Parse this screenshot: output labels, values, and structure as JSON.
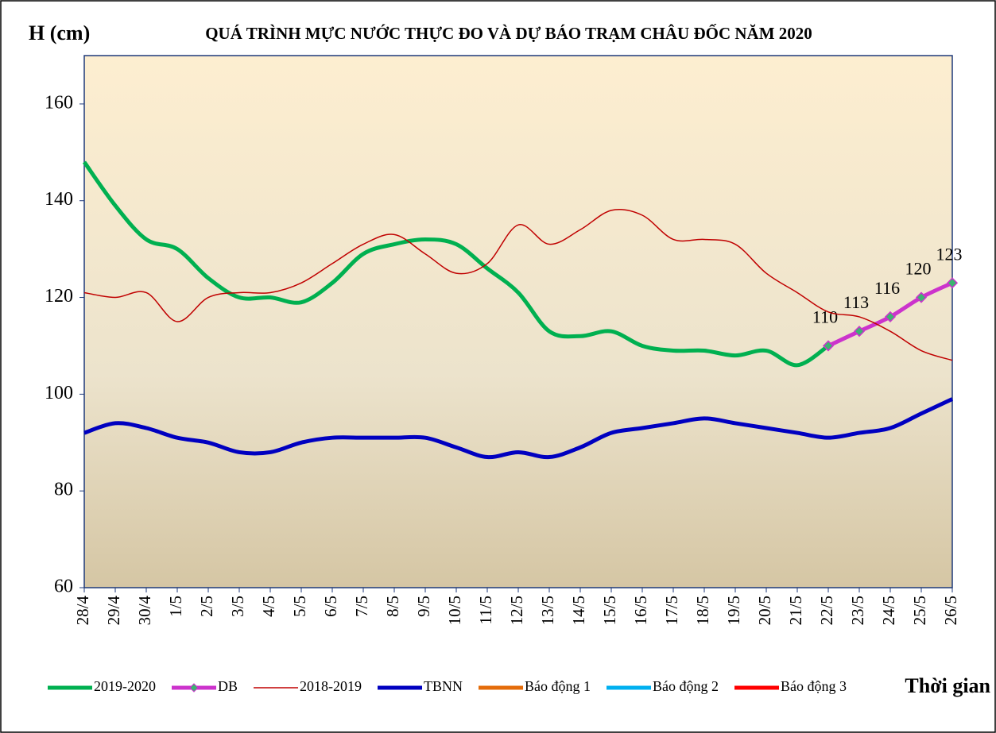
{
  "chart_data": {
    "type": "line",
    "title": "QUÁ TRÌNH MỰC NƯỚC THỰC ĐO VÀ DỰ BÁO TRẠM CHÂU ĐỐC NĂM  2020",
    "y_label": "H (cm)",
    "x_label": "Thời gian",
    "categories": [
      "28/4",
      "29/4",
      "30/4",
      "1/5",
      "2/5",
      "3/5",
      "4/5",
      "5/5",
      "6/5",
      "7/5",
      "8/5",
      "9/5",
      "10/5",
      "11/5",
      "12/5",
      "13/5",
      "14/5",
      "15/5",
      "16/5",
      "17/5",
      "18/5",
      "19/5",
      "20/5",
      "21/5",
      "22/5",
      "23/5",
      "24/5",
      "25/5",
      "26/5"
    ],
    "series": [
      {
        "name": "2019-2020",
        "color": "#00b050",
        "width": 5,
        "values": [
          148,
          139,
          132,
          130,
          124,
          120,
          120,
          119,
          123,
          129,
          131,
          132,
          131,
          126,
          121,
          113,
          112,
          113,
          110,
          109,
          109,
          108,
          109,
          106,
          110,
          null,
          null,
          null,
          null
        ]
      },
      {
        "name": "DB",
        "color": "#cc33cc",
        "width": 5,
        "markers": true,
        "data_labels": true,
        "values": [
          null,
          null,
          null,
          null,
          null,
          null,
          null,
          null,
          null,
          null,
          null,
          null,
          null,
          null,
          null,
          null,
          null,
          null,
          null,
          null,
          null,
          null,
          null,
          null,
          110,
          113,
          116,
          120,
          123
        ]
      },
      {
        "name": "2018-2019",
        "color": "#c00000",
        "width": 1.5,
        "values": [
          121,
          120,
          121,
          115,
          120,
          121,
          121,
          123,
          127,
          131,
          133,
          129,
          125,
          127,
          135,
          131,
          134,
          138,
          137,
          132,
          132,
          131,
          125,
          121,
          117,
          116,
          113,
          109,
          107
        ]
      },
      {
        "name": "TBNN",
        "color": "#0000c0",
        "width": 5,
        "values": [
          92,
          94,
          93,
          91,
          90,
          88,
          88,
          90,
          91,
          91,
          91,
          91,
          89,
          87,
          88,
          87,
          89,
          92,
          93,
          94,
          95,
          94,
          93,
          92,
          91,
          92,
          93,
          96,
          99
        ]
      },
      {
        "name": "Báo động 1",
        "color": "#e46c0a",
        "width": 5,
        "values": [
          null,
          null,
          null,
          null,
          null,
          null,
          null,
          null,
          null,
          null,
          null,
          null,
          null,
          null,
          null,
          null,
          null,
          null,
          null,
          null,
          null,
          null,
          null,
          null,
          null,
          null,
          null,
          null,
          null
        ]
      },
      {
        "name": "Báo động 2",
        "color": "#00b0f0",
        "width": 5,
        "values": [
          null,
          null,
          null,
          null,
          null,
          null,
          null,
          null,
          null,
          null,
          null,
          null,
          null,
          null,
          null,
          null,
          null,
          null,
          null,
          null,
          null,
          null,
          null,
          null,
          null,
          null,
          null,
          null,
          null
        ]
      },
      {
        "name": "Báo động 3",
        "color": "#ff0000",
        "width": 5,
        "values": [
          null,
          null,
          null,
          null,
          null,
          null,
          null,
          null,
          null,
          null,
          null,
          null,
          null,
          null,
          null,
          null,
          null,
          null,
          null,
          null,
          null,
          null,
          null,
          null,
          null,
          null,
          null,
          null,
          null
        ]
      }
    ],
    "ylim": [
      60,
      170
    ],
    "yticks": [
      60,
      80,
      100,
      120,
      140,
      160
    ],
    "grid": false,
    "legend": "bottom"
  }
}
